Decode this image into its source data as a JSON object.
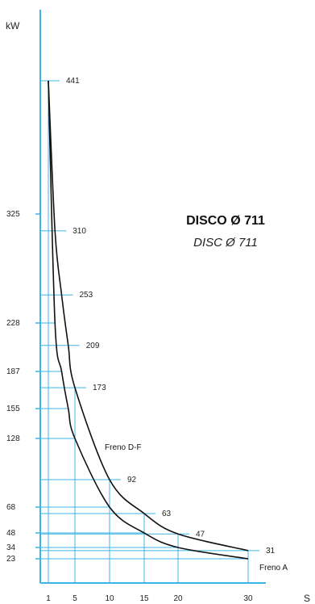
{
  "chart_data": {
    "type": "line",
    "title": "DISCO Ø 711",
    "subtitle": "DISC Ø 711",
    "ylabel": "kW",
    "xlabel": "S",
    "x_ticks": [
      1,
      5,
      10,
      15,
      20,
      30
    ],
    "y_ticks": [
      23,
      34,
      48,
      68,
      128,
      155,
      187,
      228,
      325
    ],
    "xlim": [
      0,
      31
    ],
    "ylim": [
      0,
      480
    ],
    "grid": true,
    "series": [
      {
        "name": "Freno D-F",
        "points": [
          [
            1,
            441
          ],
          [
            2,
            310
          ],
          [
            3,
            253
          ],
          [
            4,
            209
          ],
          [
            5,
            173
          ],
          [
            10,
            92
          ],
          [
            15,
            63
          ],
          [
            20,
            47
          ],
          [
            30,
            31
          ]
        ],
        "labels": [
          "441",
          "310",
          "253",
          "209",
          "173",
          "92",
          "63",
          "47",
          "31"
        ]
      },
      {
        "name": "Freno A",
        "points": [
          [
            1,
            441
          ],
          [
            2,
            228
          ],
          [
            3,
            187
          ],
          [
            4,
            155
          ],
          [
            5,
            128
          ],
          [
            10,
            68
          ],
          [
            15,
            48
          ],
          [
            20,
            34
          ],
          [
            30,
            23
          ]
        ]
      }
    ]
  }
}
